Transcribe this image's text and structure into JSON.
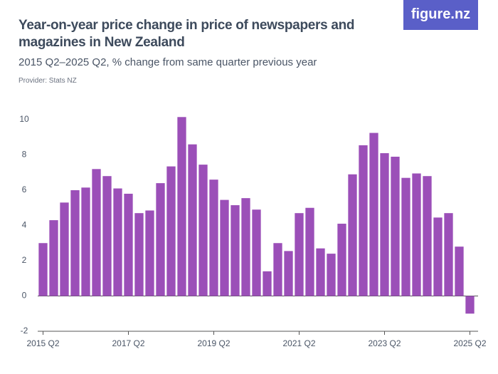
{
  "brand": "figure.nz",
  "chart_data": {
    "type": "bar",
    "title": "Year-on-year price change in price of newspapers and magazines in New Zealand",
    "subtitle": "2015 Q2–2025 Q2, % change from same quarter previous year",
    "provider": "Provider: Stats NZ",
    "categories": [
      "2015 Q2",
      null,
      null,
      null,
      null,
      null,
      null,
      null,
      "2017 Q2",
      null,
      null,
      null,
      null,
      null,
      null,
      null,
      "2019 Q2",
      null,
      null,
      null,
      null,
      null,
      null,
      null,
      "2021 Q2",
      null,
      null,
      null,
      null,
      null,
      null,
      null,
      "2023 Q2",
      null,
      null,
      null,
      null,
      null,
      null,
      null,
      "2025 Q2"
    ],
    "values": [
      3.0,
      4.3,
      5.3,
      6.0,
      6.15,
      7.2,
      6.8,
      6.1,
      5.8,
      4.7,
      4.85,
      6.4,
      7.35,
      10.15,
      8.6,
      7.45,
      6.6,
      5.45,
      5.15,
      5.55,
      4.9,
      1.4,
      3.0,
      2.55,
      4.7,
      5.0,
      2.7,
      2.4,
      4.1,
      6.9,
      8.55,
      9.25,
      8.1,
      7.9,
      6.7,
      6.95,
      6.8,
      4.45,
      4.7,
      2.8,
      -1.0
    ],
    "color": "#9b4fb8",
    "ylim": [
      -2,
      10
    ],
    "yticks": [
      -2,
      0,
      2,
      4,
      6,
      8,
      10
    ],
    "grid": false
  }
}
